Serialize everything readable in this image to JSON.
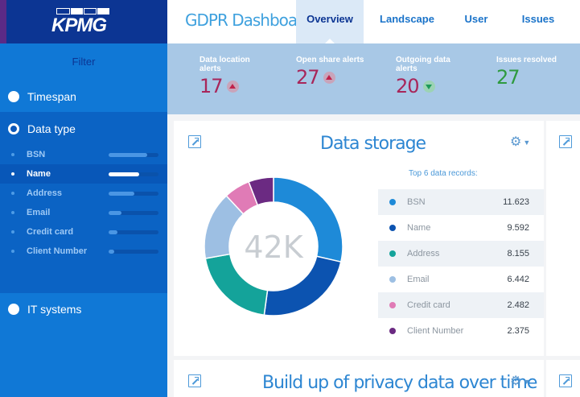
{
  "brand": {
    "logo_text": "KPMG"
  },
  "header": {
    "title": "GDPR Dashboard",
    "tabs": [
      {
        "label": "Overview",
        "active": true
      },
      {
        "label": "Landscape"
      },
      {
        "label": "User access"
      },
      {
        "label": "Issues"
      }
    ]
  },
  "sidebar": {
    "filter_label": "Filter",
    "timespan": "Timespan",
    "data_type": "Data type",
    "it_systems": "IT systems",
    "items": [
      {
        "label": "BSN",
        "level": 0.78
      },
      {
        "label": "Name",
        "level": 0.62,
        "selected": true
      },
      {
        "label": "Address",
        "level": 0.52
      },
      {
        "label": "Email",
        "level": 0.25
      },
      {
        "label": "Credit card",
        "level": 0.18
      },
      {
        "label": "Client Number",
        "level": 0.12
      }
    ]
  },
  "alerts": [
    {
      "title": "Data location alerts",
      "value": "17",
      "trend": "up",
      "color": "#a8265a"
    },
    {
      "title": "Open share alerts",
      "value": "27",
      "trend": "up",
      "color": "#a8265a"
    },
    {
      "title": "Outgoing data alerts",
      "value": "20",
      "trend": "down",
      "color": "#a8265a"
    },
    {
      "title": "Issues resolved",
      "value": "27",
      "trend": "none",
      "color": "#2e9a3f"
    }
  ],
  "storage_card": {
    "title": "Data storage",
    "center_label": "42K",
    "list_title": "Top 6 data records:",
    "records": [
      {
        "name": "BSN",
        "value": "11.623",
        "color": "#1e8ad8"
      },
      {
        "name": "Name",
        "value": "9.592",
        "color": "#0c53b0"
      },
      {
        "name": "Address",
        "value": "8.155",
        "color": "#14a39a"
      },
      {
        "name": "Email",
        "value": "6.442",
        "color": "#9dbfe3"
      },
      {
        "name": "Credit card",
        "value": "2.482",
        "color": "#e07bb6"
      },
      {
        "name": "Client Number",
        "value": "2.375",
        "color": "#6b2a82"
      }
    ]
  },
  "privacy_card": {
    "title": "Build up of privacy data over time"
  }
}
